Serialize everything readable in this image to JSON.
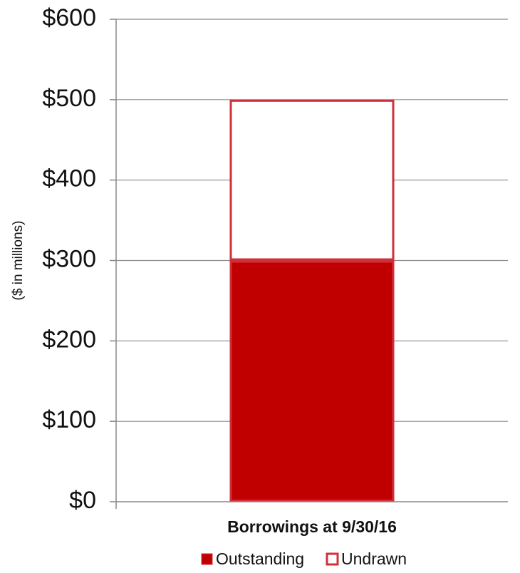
{
  "chart_data": {
    "type": "bar",
    "stacked": true,
    "categories": [
      "Borrowings at 9/30/16"
    ],
    "series": [
      {
        "name": "Outstanding",
        "values": [
          300
        ],
        "color": "#C00000",
        "style": "filled"
      },
      {
        "name": "Undrawn",
        "values": [
          200
        ],
        "color": "#C00000",
        "style": "outline"
      }
    ],
    "ylabel": "($ in millions)",
    "xlabel": "",
    "ylim": [
      0,
      600
    ],
    "yticks": [
      0,
      100,
      200,
      300,
      400,
      500,
      600
    ],
    "ytick_labels": [
      "$0",
      "$100",
      "$200",
      "$300",
      "$400",
      "$500",
      "$600"
    ],
    "grid": true,
    "legend_position": "bottom"
  }
}
